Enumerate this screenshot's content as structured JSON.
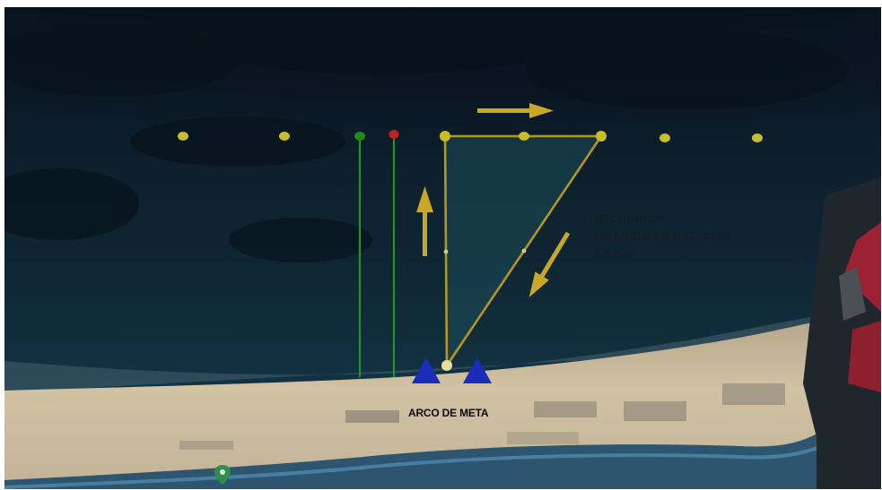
{
  "finish": {
    "label": "ARCO DE META"
  },
  "course_note": {
    "lines": [
      "RECORRIDO",
      "TRIANGULAR NATACION",
      "NOCHE"
    ]
  },
  "colors": {
    "sea_deep": "#0a1824",
    "sea_mid": "#0f2735",
    "course_fill": "#123440",
    "shore": "#2c3e46",
    "beach": "#c9b99a",
    "promenade": "#3b6c8c",
    "course_line": "#b5961c",
    "buoy_yellow": "#c7bd2b",
    "buoy_green": "#1f8a1c",
    "buoy_red": "#c0231c",
    "lane_green": "#239423",
    "arrow": "#c8a825",
    "finish_triangle": "#1a2cb8",
    "buildings": "#9b2233"
  },
  "markers": {
    "buoy_row": [
      "yellow",
      "yellow",
      "green",
      "red",
      "yellow",
      "yellow",
      "yellow",
      "yellow",
      "yellow"
    ],
    "lanes": [
      "green",
      "green"
    ],
    "finish_triangles": 2,
    "map_pin": "location-pin-icon"
  }
}
